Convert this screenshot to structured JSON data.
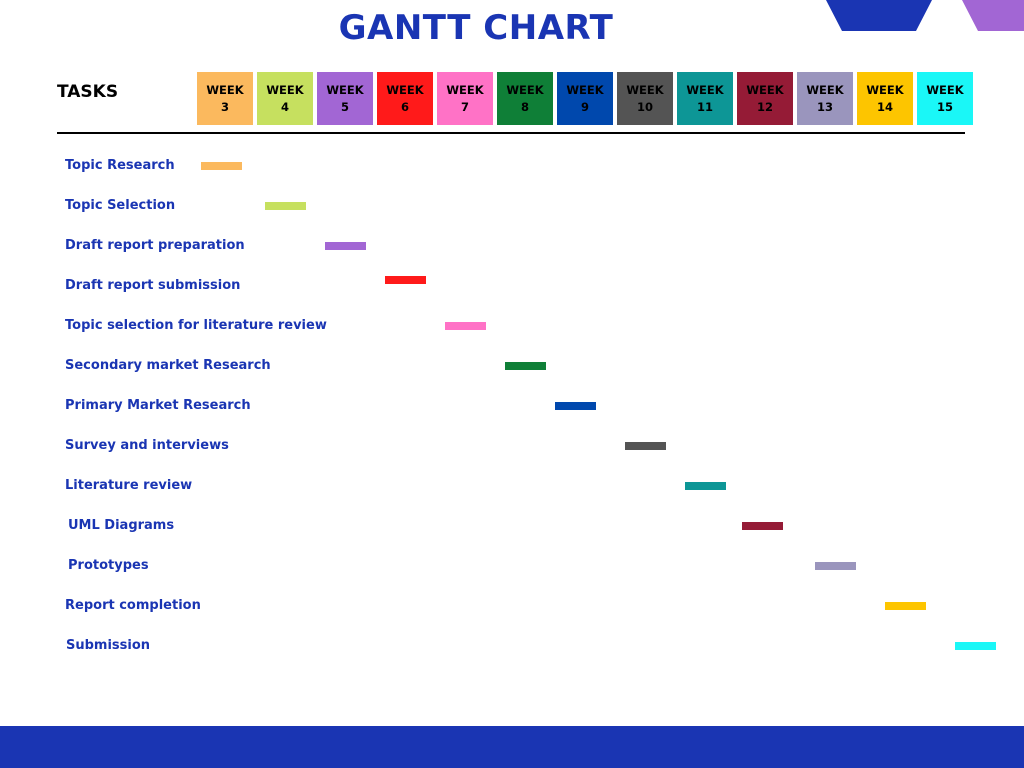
{
  "title": "GANTT CHART",
  "tasks_header": "TASKS",
  "colors": {
    "title": "#1a35b3",
    "footer": "#1a35b3",
    "deco_blue": "#1a35b3",
    "deco_purple": "#a266d4"
  },
  "chart_data": {
    "type": "gantt",
    "title": "GANTT CHART",
    "weeks": [
      {
        "label": "WEEK",
        "number": "3",
        "color": "#fbb95e",
        "text_color": "#000000"
      },
      {
        "label": "WEEK",
        "number": "4",
        "color": "#c6e05f",
        "text_color": "#000000"
      },
      {
        "label": "WEEK",
        "number": "5",
        "color": "#a266d4",
        "text_color": "#000000"
      },
      {
        "label": "WEEK",
        "number": "6",
        "color": "#ff1a1a",
        "text_color": "#000000"
      },
      {
        "label": "WEEK",
        "number": "7",
        "color": "#ff72c6",
        "text_color": "#000000"
      },
      {
        "label": "WEEK",
        "number": "8",
        "color": "#0f7f37",
        "text_color": "#000000"
      },
      {
        "label": "WEEK",
        "number": "9",
        "color": "#0048ad",
        "text_color": "#000000"
      },
      {
        "label": "WEEK",
        "number": "10",
        "color": "#545454",
        "text_color": "#000000"
      },
      {
        "label": "WEEK",
        "number": "11",
        "color": "#0d9696",
        "text_color": "#000000"
      },
      {
        "label": "WEEK",
        "number": "12",
        "color": "#951b36",
        "text_color": "#000000"
      },
      {
        "label": "WEEK",
        "number": "13",
        "color": "#9a95bd",
        "text_color": "#000000"
      },
      {
        "label": "WEEK",
        "number": "14",
        "color": "#fdc500",
        "text_color": "#000000"
      },
      {
        "label": "WEEK",
        "number": "15",
        "color": "#1af7f7",
        "text_color": "#000000"
      }
    ],
    "tasks": [
      {
        "name": "Topic Research",
        "week": 3,
        "color": "#fbb95e"
      },
      {
        "name": "Topic Selection",
        "week": 4,
        "color": "#c6e05f"
      },
      {
        "name": "Draft report preparation",
        "week": 5,
        "color": "#a266d4"
      },
      {
        "name": "Draft report submission",
        "week": 6,
        "color": "#ff1a1a"
      },
      {
        "name": "Topic selection for literature review",
        "week": 7,
        "color": "#ff72c6"
      },
      {
        "name": "Secondary market Research",
        "week": 8,
        "color": "#0f7f37"
      },
      {
        "name": "Primary Market Research",
        "week": 9,
        "color": "#0048ad"
      },
      {
        "name": "Survey and interviews",
        "week": 10,
        "color": "#545454"
      },
      {
        "name": "Literature review",
        "week": 11,
        "color": "#0d9696"
      },
      {
        "name": "UML Diagrams",
        "week": 12,
        "color": "#951b36"
      },
      {
        "name": "Prototypes",
        "week": 13,
        "color": "#9a95bd"
      },
      {
        "name": "Report completion",
        "week": 14,
        "color": "#fdc500"
      },
      {
        "name": "Submission",
        "week": 15,
        "color": "#1af7f7"
      }
    ]
  }
}
